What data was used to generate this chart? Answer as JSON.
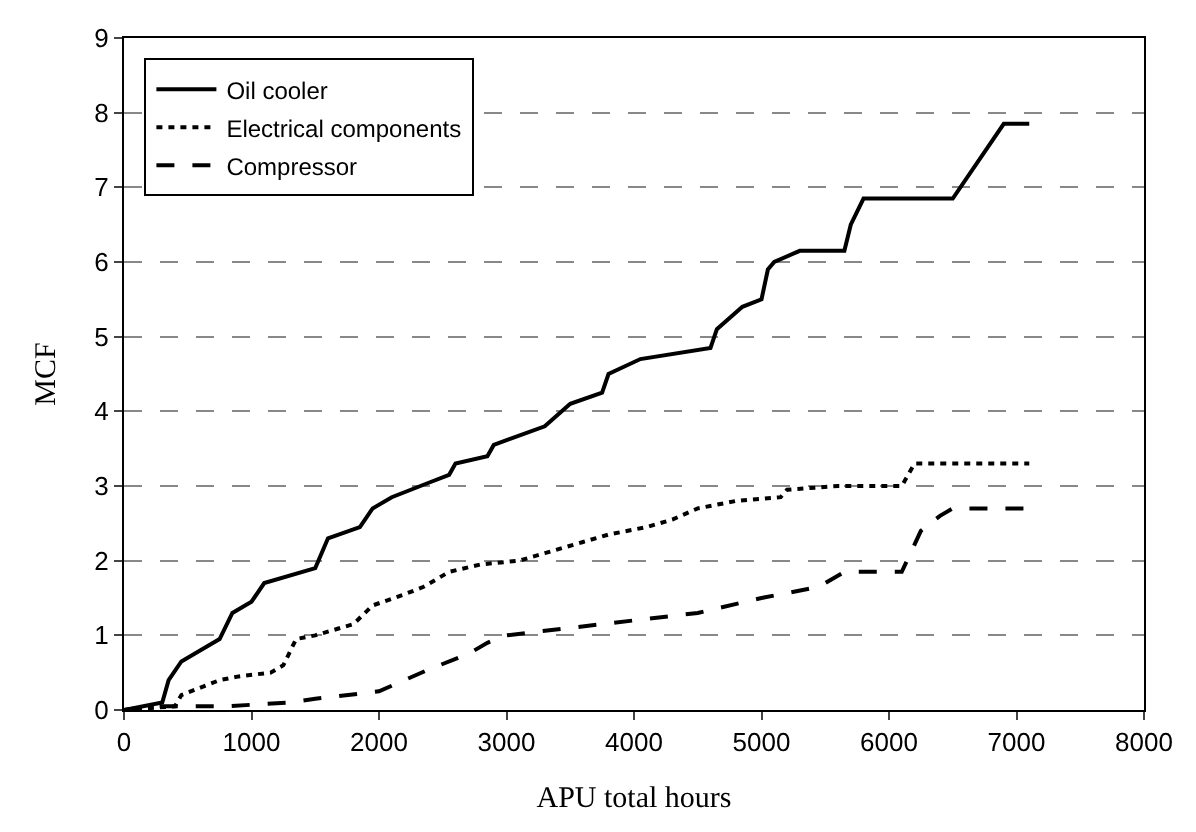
{
  "chart_data": {
    "type": "line",
    "xlabel": "APU total hours",
    "ylabel": "MCF",
    "xlim": [
      0,
      8000
    ],
    "xticks": [
      0,
      1000,
      2000,
      3000,
      4000,
      5000,
      6000,
      7000,
      8000
    ],
    "ylim": [
      0,
      9
    ],
    "yticks": [
      0,
      1,
      2,
      3,
      4,
      5,
      6,
      7,
      8,
      9
    ],
    "grid": "y",
    "legend": "top left",
    "marker": "none",
    "series": [
      {
        "name": "Oil cooler",
        "color": "#000000",
        "line_style": "solid",
        "x": [
          0,
          300,
          350,
          450,
          600,
          750,
          850,
          1000,
          1100,
          1500,
          1600,
          1850,
          1950,
          2100,
          2400,
          2550,
          2600,
          2850,
          2900,
          3300,
          3500,
          3750,
          3800,
          4050,
          4600,
          4650,
          4850,
          5000,
          5050,
          5100,
          5300,
          5650,
          5700,
          5800,
          6500,
          6900,
          7100
        ],
        "values": [
          0,
          0.1,
          0.4,
          0.65,
          0.8,
          0.95,
          1.3,
          1.45,
          1.7,
          1.9,
          2.3,
          2.45,
          2.7,
          2.85,
          3.05,
          3.15,
          3.3,
          3.4,
          3.55,
          3.8,
          4.1,
          4.25,
          4.5,
          4.7,
          4.85,
          5.1,
          5.4,
          5.5,
          5.9,
          6.0,
          6.15,
          6.15,
          6.5,
          6.85,
          6.85,
          7.85,
          7.85
        ]
      },
      {
        "name": "Electrical components",
        "color": "#000000",
        "line_style": "dotted",
        "x": [
          0,
          400,
          450,
          600,
          750,
          900,
          1150,
          1250,
          1350,
          1500,
          1800,
          1950,
          2200,
          2350,
          2550,
          2800,
          3100,
          3300,
          3600,
          3800,
          4100,
          4300,
          4500,
          4800,
          5150,
          5200,
          5600,
          6100,
          6200,
          7100
        ],
        "values": [
          0,
          0.05,
          0.2,
          0.3,
          0.4,
          0.45,
          0.5,
          0.6,
          0.95,
          1.0,
          1.15,
          1.4,
          1.55,
          1.65,
          1.85,
          1.95,
          2.0,
          2.1,
          2.25,
          2.35,
          2.45,
          2.55,
          2.7,
          2.8,
          2.85,
          2.95,
          3.0,
          3.0,
          3.3,
          3.3
        ]
      },
      {
        "name": "Compressor",
        "color": "#000000",
        "line_style": "dashed",
        "x": [
          0,
          200,
          800,
          1300,
          1500,
          2000,
          2400,
          2700,
          2850,
          3000,
          3500,
          4500,
          5000,
          5450,
          5650,
          6100,
          6250,
          6400,
          6500,
          7100
        ],
        "values": [
          0,
          0.05,
          0.05,
          0.1,
          0.15,
          0.25,
          0.55,
          0.75,
          0.9,
          1.0,
          1.1,
          1.3,
          1.5,
          1.65,
          1.85,
          1.85,
          2.4,
          2.6,
          2.7,
          2.7
        ]
      }
    ]
  }
}
